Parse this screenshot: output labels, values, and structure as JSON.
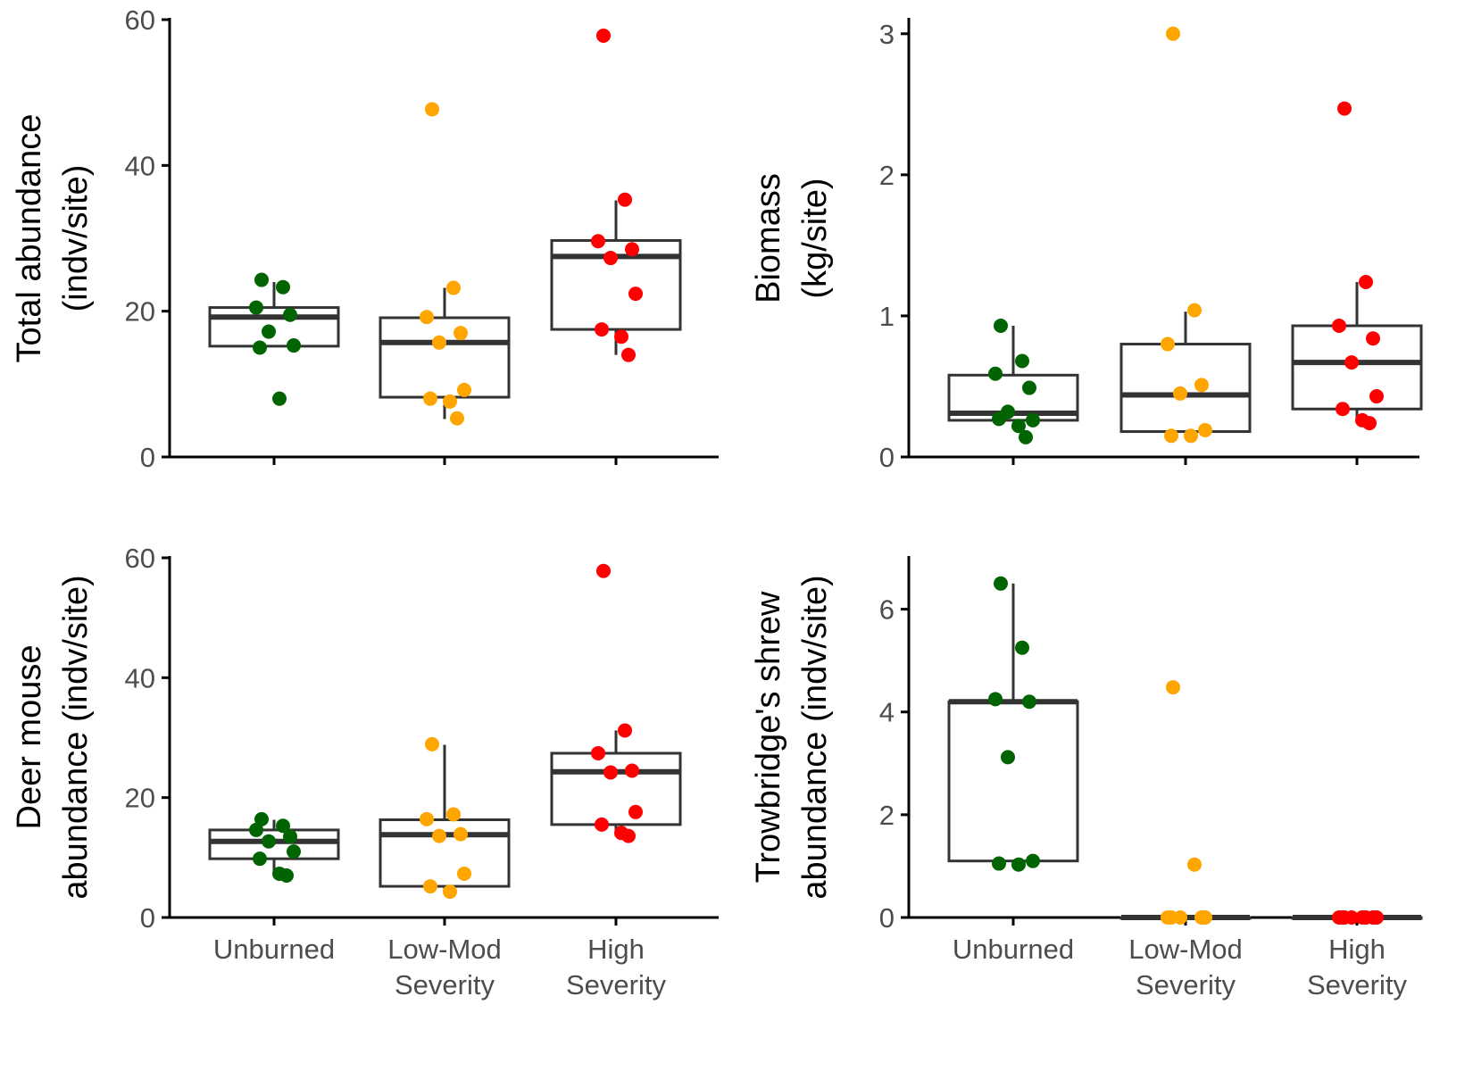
{
  "colors": {
    "Unburned": "#006400",
    "Low-Mod Severity": "#FFA500",
    "High Severity": "#FF0000"
  },
  "chart_data": [
    {
      "type": "box",
      "id": "total_abundance",
      "ylabel": [
        "Total abundance",
        "(indv/site)"
      ],
      "ylim": [
        0,
        60
      ],
      "yticks": [
        "0",
        "20",
        "40",
        "60"
      ],
      "categories": [
        {
          "key": "Unburned",
          "label": [
            "Unburned"
          ],
          "box": {
            "q1": 15.2,
            "median": 19.2,
            "q3": 20.5,
            "whisker_low": 15.2,
            "whisker_high": 24
          },
          "points": [
            24.3,
            23.3,
            20.5,
            19.5,
            17.2,
            15.3,
            15.0,
            8.0
          ]
        },
        {
          "key": "Low-Mod Severity",
          "label": [
            "Low-Mod",
            "Severity"
          ],
          "box": {
            "q1": 8.2,
            "median": 15.7,
            "q3": 19.1,
            "whisker_low": 5.2,
            "whisker_high": 23.2
          },
          "points": [
            47.7,
            23.2,
            19.2,
            17.0,
            15.7,
            9.2,
            8.0,
            7.6,
            5.3
          ]
        },
        {
          "key": "High Severity",
          "label": [
            "High",
            "Severity"
          ],
          "box": {
            "q1": 17.5,
            "median": 27.5,
            "q3": 29.7,
            "whisker_low": 14.0,
            "whisker_high": 35.2
          },
          "points": [
            57.8,
            35.3,
            29.6,
            28.5,
            27.3,
            22.4,
            17.5,
            16.5,
            14.0
          ]
        }
      ]
    },
    {
      "type": "box",
      "id": "biomass",
      "ylabel": [
        "Biomass",
        "(kg/site)"
      ],
      "ylim": [
        0,
        3.1
      ],
      "yticks": [
        "0",
        "1",
        "2",
        "3"
      ],
      "categories": [
        {
          "key": "Unburned",
          "label": [
            "Unburned"
          ],
          "box": {
            "q1": 0.26,
            "median": 0.31,
            "q3": 0.58,
            "whisker_low": 0.26,
            "whisker_high": 0.93
          },
          "points": [
            0.93,
            0.68,
            0.59,
            0.49,
            0.32,
            0.26,
            0.27,
            0.22,
            0.14
          ]
        },
        {
          "key": "Low-Mod Severity",
          "label": [
            "Low-Mod",
            "Severity"
          ],
          "box": {
            "q1": 0.18,
            "median": 0.44,
            "q3": 0.8,
            "whisker_low": 0.14,
            "whisker_high": 1.03
          },
          "points": [
            3.0,
            1.04,
            0.8,
            0.51,
            0.45,
            0.19,
            0.15,
            0.15
          ]
        },
        {
          "key": "High Severity",
          "label": [
            "High",
            "Severity"
          ],
          "box": {
            "q1": 0.34,
            "median": 0.67,
            "q3": 0.93,
            "whisker_low": 0.24,
            "whisker_high": 1.24
          },
          "points": [
            2.47,
            1.24,
            0.93,
            0.84,
            0.67,
            0.43,
            0.34,
            0.26,
            0.24
          ]
        }
      ]
    },
    {
      "type": "box",
      "id": "deer_mouse",
      "ylabel": [
        "Deer mouse",
        "abundance (indv/site)"
      ],
      "ylim": [
        0,
        60
      ],
      "yticks": [
        "0",
        "20",
        "40",
        "60"
      ],
      "categories": [
        {
          "key": "Unburned",
          "label": [
            "Unburned"
          ],
          "box": {
            "q1": 9.8,
            "median": 12.7,
            "q3": 14.6,
            "whisker_low": 7.0,
            "whisker_high": 16.3
          },
          "points": [
            16.4,
            15.3,
            14.6,
            13.5,
            12.7,
            11.0,
            9.8,
            7.3,
            7.0
          ]
        },
        {
          "key": "Low-Mod Severity",
          "label": [
            "Low-Mod",
            "Severity"
          ],
          "box": {
            "q1": 5.2,
            "median": 13.8,
            "q3": 16.3,
            "whisker_low": 4.2,
            "whisker_high": 28.8
          },
          "points": [
            28.9,
            17.2,
            16.4,
            13.9,
            13.6,
            7.3,
            5.2,
            4.3
          ]
        },
        {
          "key": "High Severity",
          "label": [
            "High",
            "Severity"
          ],
          "box": {
            "q1": 15.5,
            "median": 24.3,
            "q3": 27.4,
            "whisker_low": 13.6,
            "whisker_high": 31.2
          },
          "points": [
            57.8,
            31.2,
            27.4,
            24.5,
            24.2,
            17.6,
            15.5,
            14.1,
            13.6
          ]
        }
      ]
    },
    {
      "type": "box",
      "id": "trowbridges_shrew",
      "ylabel": [
        "Trowbridge's shrew",
        "abundance (indv/site)"
      ],
      "ylim": [
        0,
        7
      ],
      "yticks": [
        "0",
        "2",
        "4",
        "6"
      ],
      "categories": [
        {
          "key": "Unburned",
          "label": [
            "Unburned"
          ],
          "box": {
            "q1": 1.1,
            "median": 4.2,
            "q3": 4.2,
            "whisker_low": 1.0,
            "whisker_high": 6.5
          },
          "points": [
            6.5,
            5.25,
            4.25,
            4.2,
            3.12,
            1.1,
            1.05,
            1.03
          ]
        },
        {
          "key": "Low-Mod Severity",
          "label": [
            "Low-Mod",
            "Severity"
          ],
          "box": {
            "q1": 0,
            "median": 0,
            "q3": 0,
            "whisker_low": 0,
            "whisker_high": 0
          },
          "points": [
            4.48,
            1.03,
            0,
            0,
            0,
            0,
            0
          ]
        },
        {
          "key": "High Severity",
          "label": [
            "High",
            "Severity"
          ],
          "box": {
            "q1": 0,
            "median": 0,
            "q3": 0,
            "whisker_low": 0,
            "whisker_high": 0
          },
          "points": [
            0,
            0,
            0,
            0,
            0,
            0,
            0,
            0
          ]
        }
      ]
    }
  ]
}
